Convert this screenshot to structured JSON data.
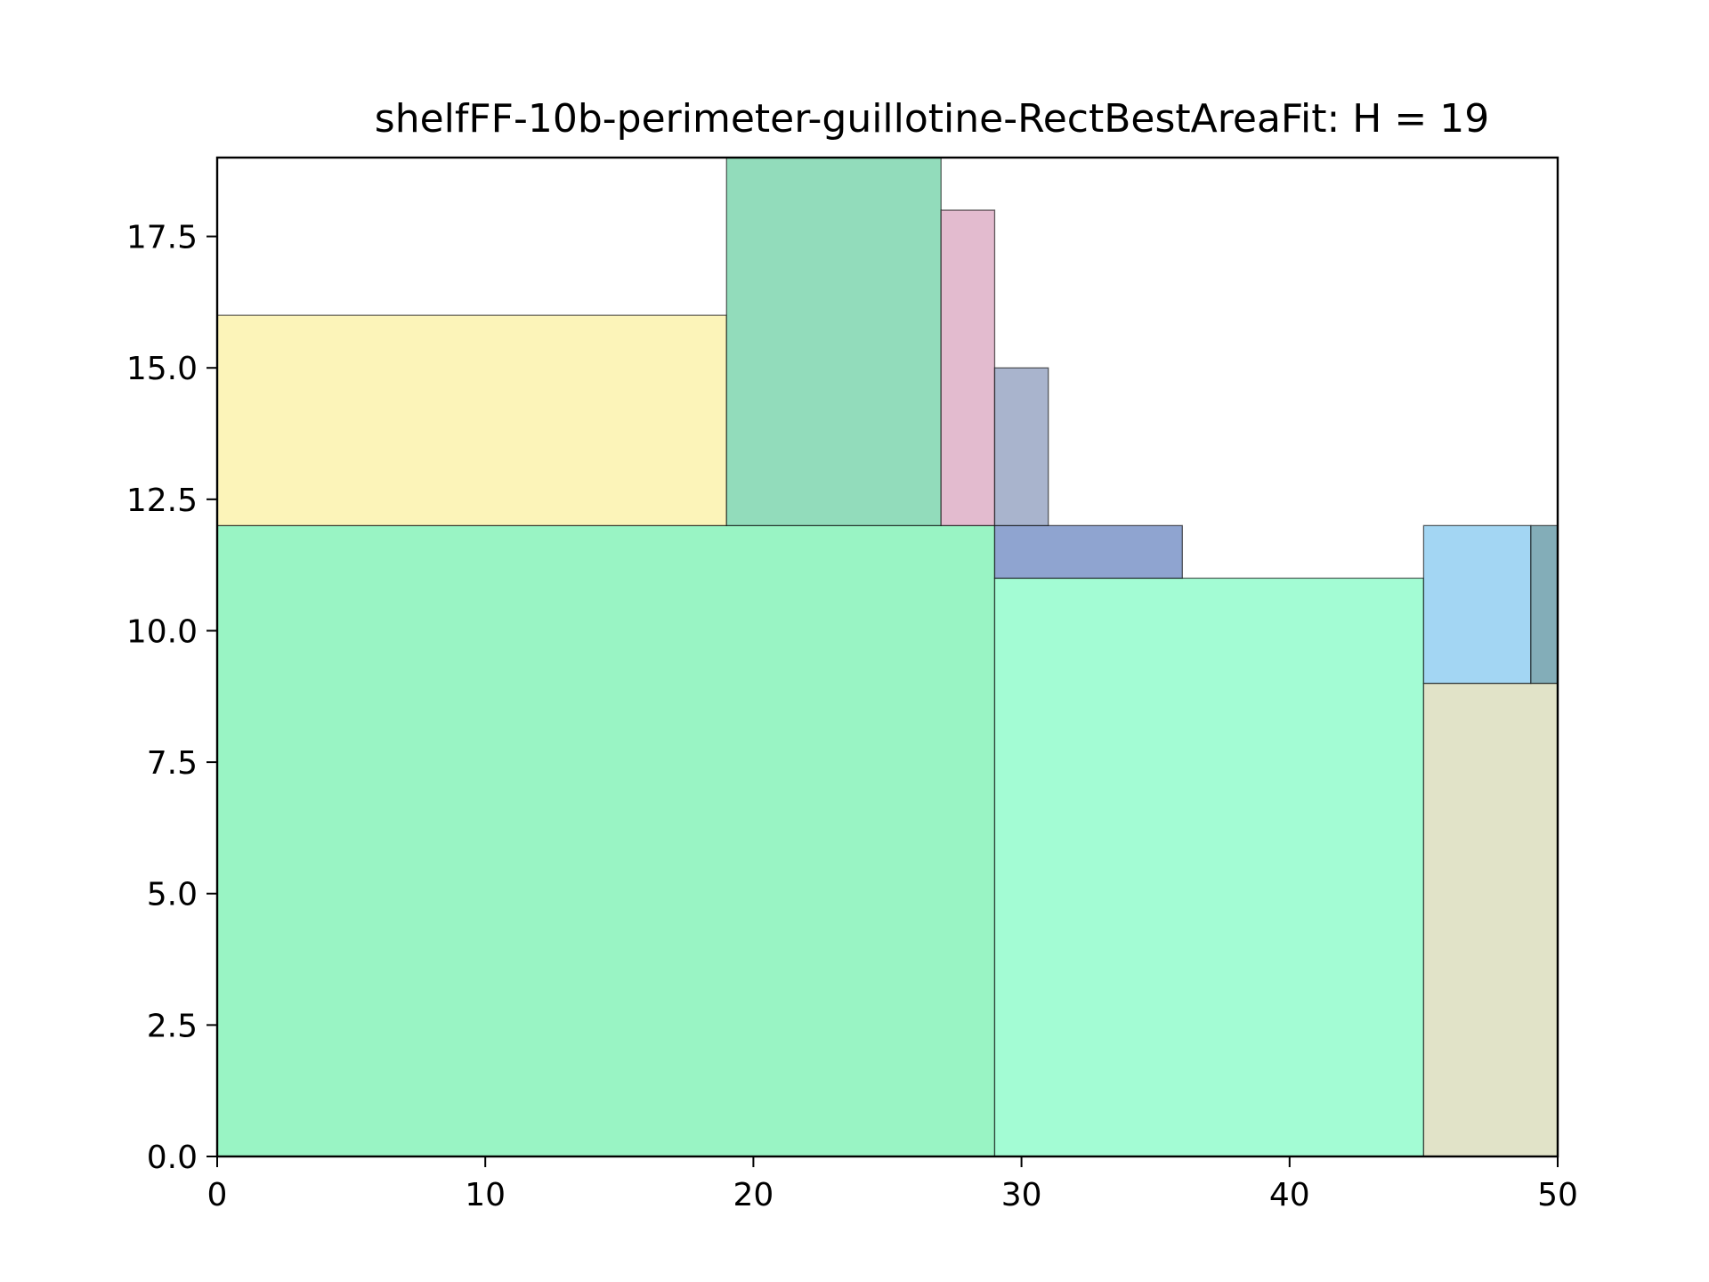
{
  "chart_data": {
    "type": "rectangle_packing",
    "title": "shelfFF-10b-perimeter-guillotine-RectBestAreaFit: H = 19",
    "xlabel": "",
    "ylabel": "",
    "xlim": [
      0,
      50
    ],
    "ylim": [
      0,
      19
    ],
    "xticks": [
      "0",
      "10",
      "20",
      "30",
      "40",
      "50"
    ],
    "yticks": [
      "0.0",
      "2.5",
      "5.0",
      "7.5",
      "10.0",
      "12.5",
      "15.0",
      "17.5"
    ],
    "grid": false,
    "legend": false,
    "rectangles": [
      {
        "x": 0,
        "y": 0,
        "w": 29,
        "h": 12,
        "color": "#99f4c4"
      },
      {
        "x": 29,
        "y": 0,
        "w": 16,
        "h": 11,
        "color": "#a3fcd4"
      },
      {
        "x": 45,
        "y": 0,
        "w": 5,
        "h": 9,
        "color": "#e1e3c8"
      },
      {
        "x": 45,
        "y": 9,
        "w": 4,
        "h": 3,
        "color": "#a3d6f3"
      },
      {
        "x": 49,
        "y": 9,
        "w": 1,
        "h": 3,
        "color": "#83adb8"
      },
      {
        "x": 29,
        "y": 11,
        "w": 7,
        "h": 1,
        "color": "#8fa4d0"
      },
      {
        "x": 0,
        "y": 12,
        "w": 19,
        "h": 4,
        "color": "#fcf4b9"
      },
      {
        "x": 19,
        "y": 12,
        "w": 8,
        "h": 7,
        "color": "#92dcbb"
      },
      {
        "x": 27,
        "y": 12,
        "w": 2,
        "h": 6,
        "color": "#e3bbcf"
      },
      {
        "x": 29,
        "y": 12,
        "w": 2,
        "h": 3,
        "color": "#a9b4cd"
      }
    ]
  }
}
